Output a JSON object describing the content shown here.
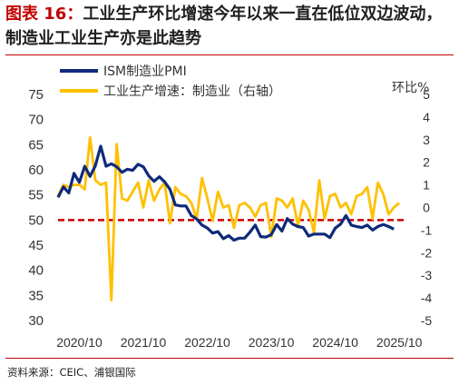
{
  "header": {
    "fig_label": "图表 16：",
    "title_text": "工业生产环比增速今年以来一直在低位双边波动，制造业工业生产亦是此趋势"
  },
  "footer": {
    "source": "资料来源：CEIC、浦银国际"
  },
  "chart_data": {
    "type": "line",
    "right_axis_unit": "环比%",
    "x_ticks": [
      "2020/10",
      "2021/10",
      "2022/10",
      "2023/10",
      "2024/10",
      "2025/10"
    ],
    "left_axis": {
      "ylim": [
        30,
        75
      ],
      "ticks": [
        30,
        35,
        40,
        45,
        50,
        55,
        60,
        65,
        70,
        75
      ]
    },
    "right_axis": {
      "ylim": [
        -5,
        5
      ],
      "ticks": [
        -5,
        -4,
        -3,
        -2,
        -1,
        0,
        1,
        2,
        3,
        4,
        5
      ]
    },
    "reference_line": {
      "value": 50,
      "color": "#cc0000",
      "style": "dashed"
    },
    "series": [
      {
        "name": "ISM制造业PMI",
        "axis": "left",
        "color": "#0e2a7a",
        "start": "2020-06",
        "values": [
          54.5,
          56.6,
          55.4,
          59.3,
          57.5,
          60.7,
          58.7,
          60.8,
          64.7,
          60.7,
          61.2,
          60.6,
          59.5,
          60.1,
          59.9,
          61.1,
          60.6,
          58.8,
          57.7,
          58.6,
          57.6,
          56.1,
          53.0,
          52.8,
          52.8,
          50.9,
          50.2,
          49.0,
          48.4,
          47.4,
          47.7,
          46.3,
          46.9,
          46.0,
          46.4,
          46.4,
          47.6,
          49.0,
          46.7,
          46.6,
          47.1,
          49.1,
          47.8,
          50.3,
          49.2,
          48.7,
          48.5,
          46.8,
          47.2,
          47.2,
          47.2,
          46.5,
          48.4,
          49.2,
          50.9,
          49.0,
          48.7,
          48.5,
          49.0,
          48.0,
          48.7,
          49.1,
          48.7,
          48.2
        ]
      },
      {
        "name": "工业生产增速：制造业（右轴）",
        "axis": "right",
        "color": "#ffc000",
        "start": "2020-06",
        "values": [
          0.5,
          1.0,
          0.9,
          1.0,
          1.0,
          0.8,
          3.1,
          1.2,
          1.0,
          1.1,
          -4.1,
          2.8,
          0.4,
          0.3,
          0.7,
          1.1,
          0.0,
          1.2,
          0.3,
          0.8,
          1.1,
          -0.7,
          0.9,
          0.6,
          0.5,
          0.2,
          -0.5,
          1.3,
          0.4,
          -0.6,
          0.7,
          0.0,
          0.1,
          -0.9,
          0.1,
          0.2,
          0.0,
          -0.4,
          0.1,
          0.2,
          -1.3,
          0.4,
          0.3,
          0.0,
          0.4,
          -0.8,
          0.3,
          -0.1,
          -1.1,
          1.2,
          -0.5,
          0.5,
          0.6,
          0.0,
          0.2,
          -0.3,
          0.5,
          0.6,
          0.9,
          -0.5,
          1.1,
          0.6,
          -0.3,
          0.0,
          0.2
        ]
      }
    ]
  }
}
